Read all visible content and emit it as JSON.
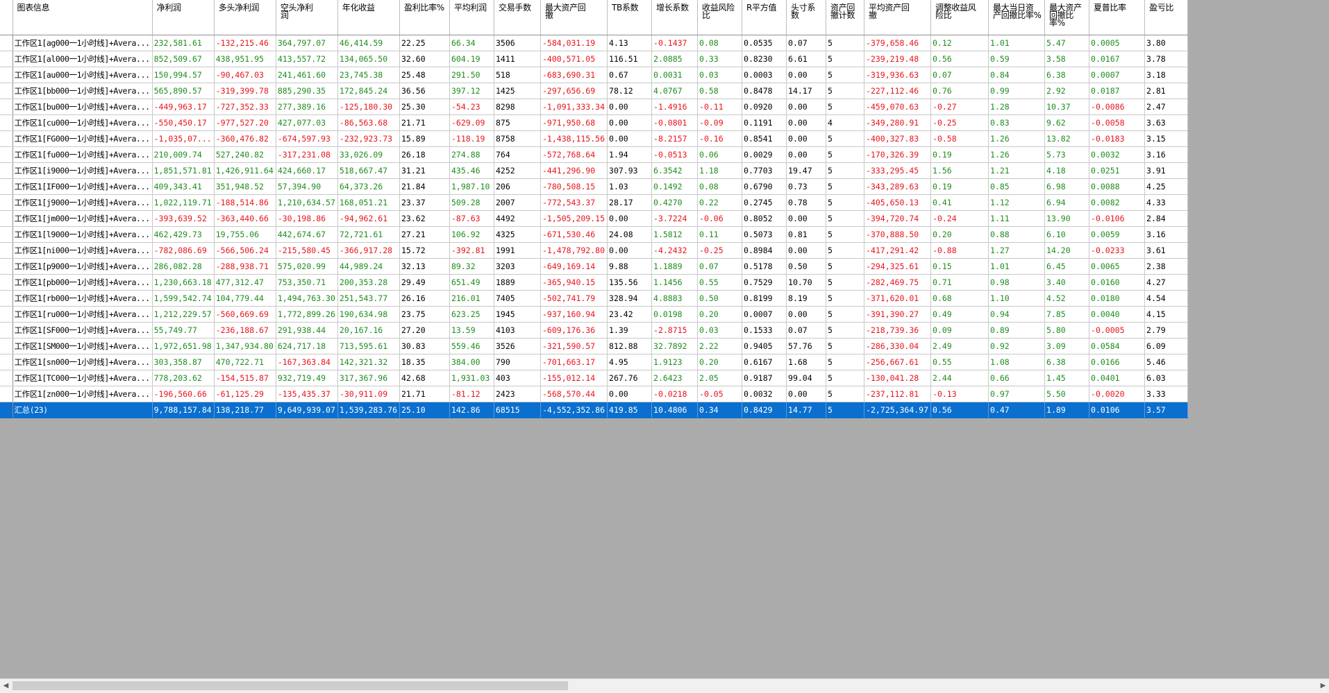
{
  "columns": [
    "图表信息",
    "净利润",
    "多头净利润",
    "空头净利\n润",
    "年化收益",
    "盈利比率%",
    "平均利润",
    "交易手数",
    "最大资产回\n撤",
    "TB系数",
    "增长系数",
    "收益风险\n比",
    "R平方值",
    "头寸系\n数",
    "资产回\n撤计数",
    "平均资产回\n撤",
    "调整收益风\n险比",
    "最大当日资\n产回撤比率%",
    "最大资产\n回撤比\n率%",
    "夏普比率",
    "盈亏比"
  ],
  "rows": [
    [
      "工作区1[ag000一1小时线]+Avera...",
      "232,581.61",
      "-132,215.46",
      "364,797.07",
      "46,414.59",
      "22.25",
      "66.34",
      "3506",
      "-584,031.19",
      "4.13",
      "-0.1437",
      "0.08",
      "0.0535",
      "0.07",
      "5",
      "-379,658.46",
      "0.12",
      "1.01",
      "5.47",
      "0.0005",
      "3.80"
    ],
    [
      "工作区1[al000一1小时线]+Avera...",
      "852,509.67",
      "438,951.95",
      "413,557.72",
      "134,065.50",
      "32.60",
      "604.19",
      "1411",
      "-400,571.05",
      "116.51",
      "2.0885",
      "0.33",
      "0.8230",
      "6.61",
      "5",
      "-239,219.48",
      "0.56",
      "0.59",
      "3.58",
      "0.0167",
      "3.78"
    ],
    [
      "工作区1[au000一1小时线]+Avera...",
      "150,994.57",
      "-90,467.03",
      "241,461.60",
      "23,745.38",
      "25.48",
      "291.50",
      "518",
      "-683,690.31",
      "0.67",
      "0.0031",
      "0.03",
      "0.0003",
      "0.00",
      "5",
      "-319,936.63",
      "0.07",
      "0.84",
      "6.38",
      "0.0007",
      "3.18"
    ],
    [
      "工作区1[bb000一1小时线]+Avera...",
      "565,890.57",
      "-319,399.78",
      "885,290.35",
      "172,845.24",
      "36.56",
      "397.12",
      "1425",
      "-297,656.69",
      "78.12",
      "4.0767",
      "0.58",
      "0.8478",
      "14.17",
      "5",
      "-227,112.46",
      "0.76",
      "0.99",
      "2.92",
      "0.0187",
      "2.81"
    ],
    [
      "工作区1[bu000一1小时线]+Avera...",
      "-449,963.17",
      "-727,352.33",
      "277,389.16",
      "-125,180.30",
      "25.30",
      "-54.23",
      "8298",
      "-1,091,333.34",
      "0.00",
      "-1.4916",
      "-0.11",
      "0.0920",
      "0.00",
      "5",
      "-459,070.63",
      "-0.27",
      "1.28",
      "10.37",
      "-0.0086",
      "2.47"
    ],
    [
      "工作区1[cu000一1小时线]+Avera...",
      "-550,450.17",
      "-977,527.20",
      "427,077.03",
      "-86,563.68",
      "21.71",
      "-629.09",
      "875",
      "-971,950.68",
      "0.00",
      "-0.0801",
      "-0.09",
      "0.1191",
      "0.00",
      "4",
      "-349,280.91",
      "-0.25",
      "0.83",
      "9.62",
      "-0.0058",
      "3.63"
    ],
    [
      "工作区1[FG000一1小时线]+Avera...",
      "-1,035,07...",
      "-360,476.82",
      "-674,597.93",
      "-232,923.73",
      "15.89",
      "-118.19",
      "8758",
      "-1,438,115.56",
      "0.00",
      "-8.2157",
      "-0.16",
      "0.8541",
      "0.00",
      "5",
      "-400,327.83",
      "-0.58",
      "1.26",
      "13.82",
      "-0.0183",
      "3.15"
    ],
    [
      "工作区1[fu000一1小时线]+Avera...",
      "210,009.74",
      "527,240.82",
      "-317,231.08",
      "33,026.09",
      "26.18",
      "274.88",
      "764",
      "-572,768.64",
      "1.94",
      "-0.0513",
      "0.06",
      "0.0029",
      "0.00",
      "5",
      "-170,326.39",
      "0.19",
      "1.26",
      "5.73",
      "0.0032",
      "3.16"
    ],
    [
      "工作区1[i9000一1小时线]+Avera...",
      "1,851,571.81",
      "1,426,911.64",
      "424,660.17",
      "518,667.47",
      "31.21",
      "435.46",
      "4252",
      "-441,296.90",
      "307.93",
      "6.3542",
      "1.18",
      "0.7703",
      "19.47",
      "5",
      "-333,295.45",
      "1.56",
      "1.21",
      "4.18",
      "0.0251",
      "3.91"
    ],
    [
      "工作区1[IF000一1小时线]+Avera...",
      "409,343.41",
      "351,948.52",
      "57,394.90",
      "64,373.26",
      "21.84",
      "1,987.10",
      "206",
      "-780,508.15",
      "1.03",
      "0.1492",
      "0.08",
      "0.6790",
      "0.73",
      "5",
      "-343,289.63",
      "0.19",
      "0.85",
      "6.98",
      "0.0088",
      "4.25"
    ],
    [
      "工作区1[j9000一1小时线]+Avera...",
      "1,022,119.71",
      "-188,514.86",
      "1,210,634.57",
      "168,051.21",
      "23.37",
      "509.28",
      "2007",
      "-772,543.37",
      "28.17",
      "0.4270",
      "0.22",
      "0.2745",
      "0.78",
      "5",
      "-405,650.13",
      "0.41",
      "1.12",
      "6.94",
      "0.0082",
      "4.33"
    ],
    [
      "工作区1[jm000一1小时线]+Avera...",
      "-393,639.52",
      "-363,440.66",
      "-30,198.86",
      "-94,962.61",
      "23.62",
      "-87.63",
      "4492",
      "-1,505,209.15",
      "0.00",
      "-3.7224",
      "-0.06",
      "0.8052",
      "0.00",
      "5",
      "-394,720.74",
      "-0.24",
      "1.11",
      "13.90",
      "-0.0106",
      "2.84"
    ],
    [
      "工作区1[l9000一1小时线]+Avera...",
      "462,429.73",
      "19,755.06",
      "442,674.67",
      "72,721.61",
      "27.21",
      "106.92",
      "4325",
      "-671,530.46",
      "24.08",
      "1.5812",
      "0.11",
      "0.5073",
      "0.81",
      "5",
      "-370,888.50",
      "0.20",
      "0.88",
      "6.10",
      "0.0059",
      "3.16"
    ],
    [
      "工作区1[ni000一1小时线]+Avera...",
      "-782,086.69",
      "-566,506.24",
      "-215,580.45",
      "-366,917.28",
      "15.72",
      "-392.81",
      "1991",
      "-1,478,792.80",
      "0.00",
      "-4.2432",
      "-0.25",
      "0.8984",
      "0.00",
      "5",
      "-417,291.42",
      "-0.88",
      "1.27",
      "14.20",
      "-0.0233",
      "3.61"
    ],
    [
      "工作区1[p9000一1小时线]+Avera...",
      "286,082.28",
      "-288,938.71",
      "575,020.99",
      "44,989.24",
      "32.13",
      "89.32",
      "3203",
      "-649,169.14",
      "9.88",
      "1.1889",
      "0.07",
      "0.5178",
      "0.50",
      "5",
      "-294,325.61",
      "0.15",
      "1.01",
      "6.45",
      "0.0065",
      "2.38"
    ],
    [
      "工作区1[pb000一1小时线]+Avera...",
      "1,230,663.18",
      "477,312.47",
      "753,350.71",
      "200,353.28",
      "29.49",
      "651.49",
      "1889",
      "-365,940.15",
      "135.56",
      "1.1456",
      "0.55",
      "0.7529",
      "10.70",
      "5",
      "-282,469.75",
      "0.71",
      "0.98",
      "3.40",
      "0.0160",
      "4.27"
    ],
    [
      "工作区1[rb000一1小时线]+Avera...",
      "1,599,542.74",
      "104,779.44",
      "1,494,763.30",
      "251,543.77",
      "26.16",
      "216.01",
      "7405",
      "-502,741.79",
      "328.94",
      "4.8883",
      "0.50",
      "0.8199",
      "8.19",
      "5",
      "-371,620.01",
      "0.68",
      "1.10",
      "4.52",
      "0.0180",
      "4.54"
    ],
    [
      "工作区1[ru000一1小时线]+Avera...",
      "1,212,229.57",
      "-560,669.69",
      "1,772,899.26",
      "190,634.98",
      "23.75",
      "623.25",
      "1945",
      "-937,160.94",
      "23.42",
      "0.0198",
      "0.20",
      "0.0007",
      "0.00",
      "5",
      "-391,390.27",
      "0.49",
      "0.94",
      "7.85",
      "0.0040",
      "4.15"
    ],
    [
      "工作区1[SF000一1小时线]+Avera...",
      "55,749.77",
      "-236,188.67",
      "291,938.44",
      "20,167.16",
      "27.20",
      "13.59",
      "4103",
      "-609,176.36",
      "1.39",
      "-2.8715",
      "0.03",
      "0.1533",
      "0.07",
      "5",
      "-218,739.36",
      "0.09",
      "0.89",
      "5.80",
      "-0.0005",
      "2.79"
    ],
    [
      "工作区1[SM000一1小时线]+Avera...",
      "1,972,651.98",
      "1,347,934.80",
      "624,717.18",
      "713,595.61",
      "30.83",
      "559.46",
      "3526",
      "-321,590.57",
      "812.88",
      "32.7892",
      "2.22",
      "0.9405",
      "57.76",
      "5",
      "-286,330.04",
      "2.49",
      "0.92",
      "3.09",
      "0.0584",
      "6.09"
    ],
    [
      "工作区1[sn000一1小时线]+Avera...",
      "303,358.87",
      "470,722.71",
      "-167,363.84",
      "142,321.32",
      "18.35",
      "384.00",
      "790",
      "-701,663.17",
      "4.95",
      "1.9123",
      "0.20",
      "0.6167",
      "1.68",
      "5",
      "-256,667.61",
      "0.55",
      "1.08",
      "6.38",
      "0.0166",
      "5.46"
    ],
    [
      "工作区1[TC000一1小时线]+Avera...",
      "778,203.62",
      "-154,515.87",
      "932,719.49",
      "317,367.96",
      "42.68",
      "1,931.03",
      "403",
      "-155,012.14",
      "267.76",
      "2.6423",
      "2.05",
      "0.9187",
      "99.04",
      "5",
      "-130,041.28",
      "2.44",
      "0.66",
      "1.45",
      "0.0401",
      "6.03"
    ],
    [
      "工作区1[zn000一1小时线]+Avera...",
      "-196,560.66",
      "-61,125.29",
      "-135,435.37",
      "-30,911.09",
      "21.71",
      "-81.12",
      "2423",
      "-568,570.44",
      "0.00",
      "-0.0218",
      "-0.05",
      "0.0032",
      "0.00",
      "5",
      "-237,112.81",
      "-0.13",
      "0.97",
      "5.50",
      "-0.0020",
      "3.33"
    ]
  ],
  "summary": [
    "汇总(23)",
    "9,788,157.84",
    "138,218.77",
    "9,649,939.07",
    "1,539,283.76",
    "25.10",
    "142.86",
    "68515",
    "-4,552,352.86",
    "419.85",
    "10.4806",
    "0.34",
    "0.8429",
    "14.77",
    "5",
    "-2,725,364.97",
    "0.56",
    "0.47",
    "1.89",
    "0.0106",
    "3.57"
  ],
  "scrollbar": {
    "left_arrow": "◀",
    "right_arrow": "▶"
  },
  "colors": {
    "positive": "#1e8c1e",
    "negative": "#e8141c",
    "selection": "#0a6fcf",
    "background": "#ababab"
  }
}
